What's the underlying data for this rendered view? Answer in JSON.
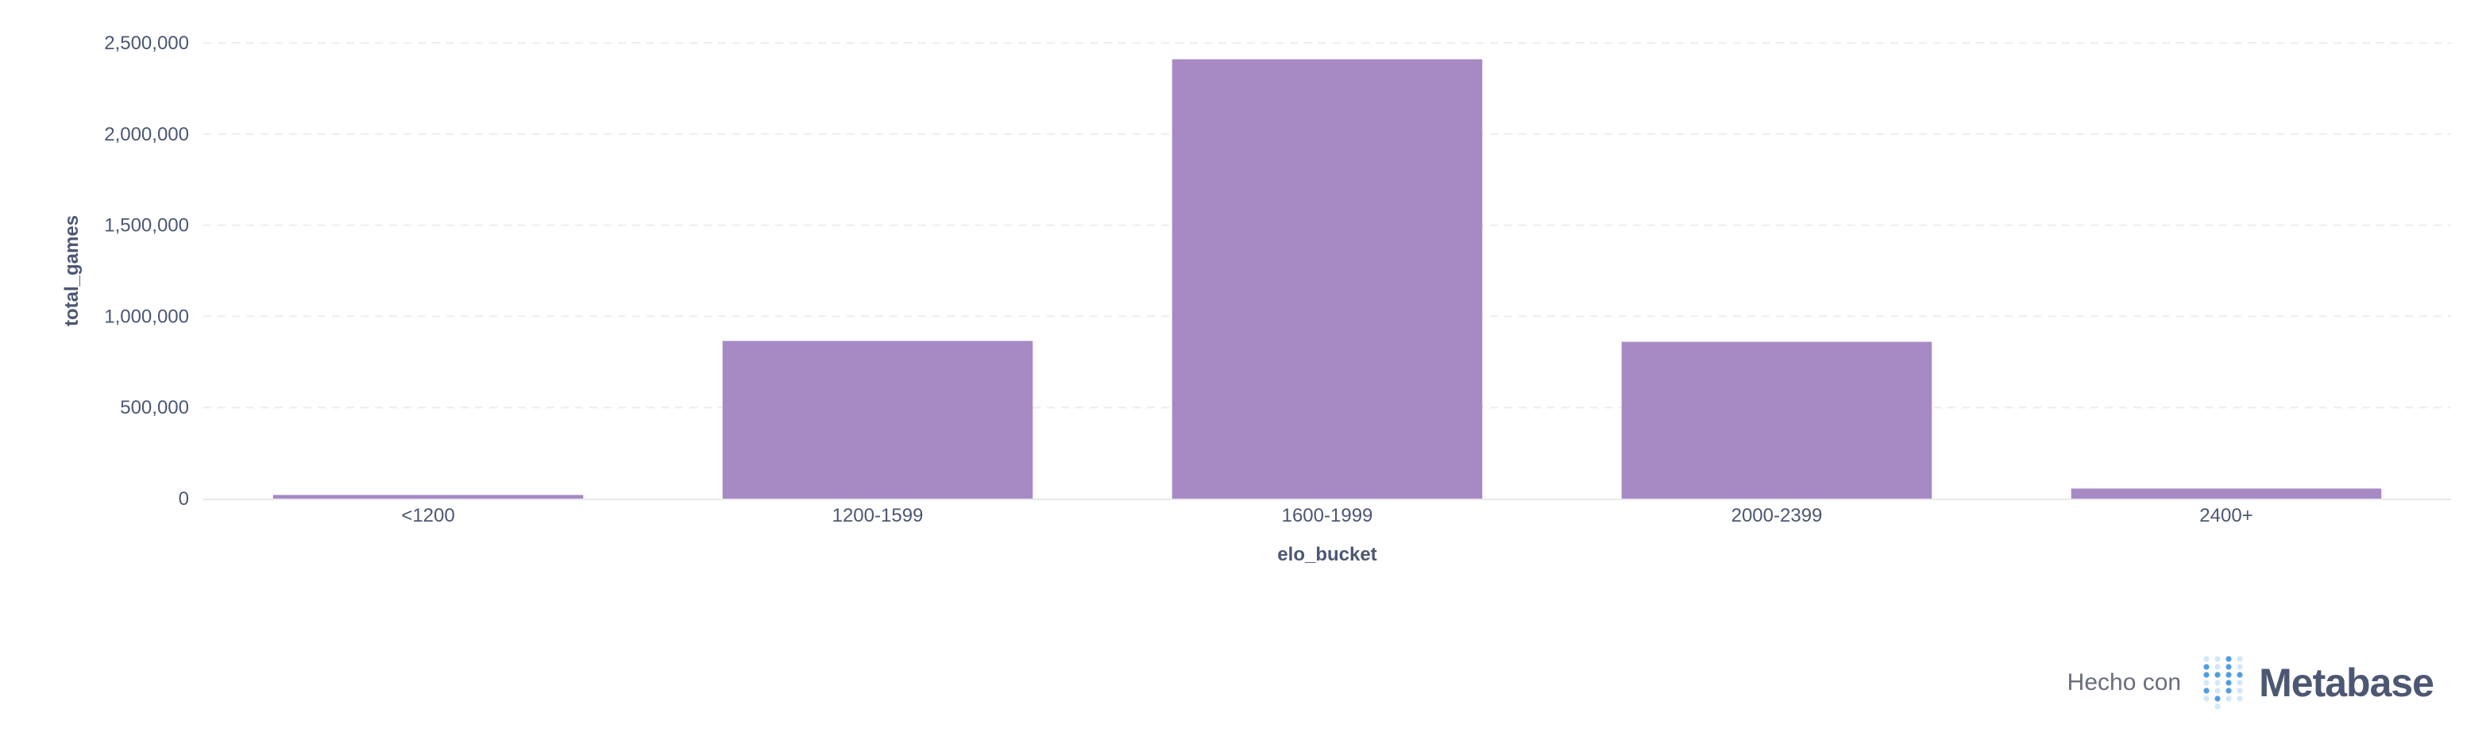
{
  "chart_data": {
    "type": "bar",
    "categories": [
      "<1200",
      "1200-1599",
      "1600-1999",
      "2000-2399",
      "2400+"
    ],
    "values": [
      20000,
      865000,
      2410000,
      860000,
      55000
    ],
    "xlabel": "elo_bucket",
    "ylabel": "total_games",
    "ylim": [
      0,
      2500000
    ],
    "yticks": [
      0,
      500000,
      1000000,
      1500000,
      2000000,
      2500000
    ],
    "ytick_labels": [
      "0",
      "500,000",
      "1,000,000",
      "1,500,000",
      "2,000,000",
      "2,500,000"
    ],
    "grid": true,
    "bar_color": "#a78ac4"
  },
  "footer": {
    "made_with": "Hecho con",
    "brand": "Metabase",
    "brand_color": "#4c5773",
    "logo_color": "#509ee3"
  }
}
